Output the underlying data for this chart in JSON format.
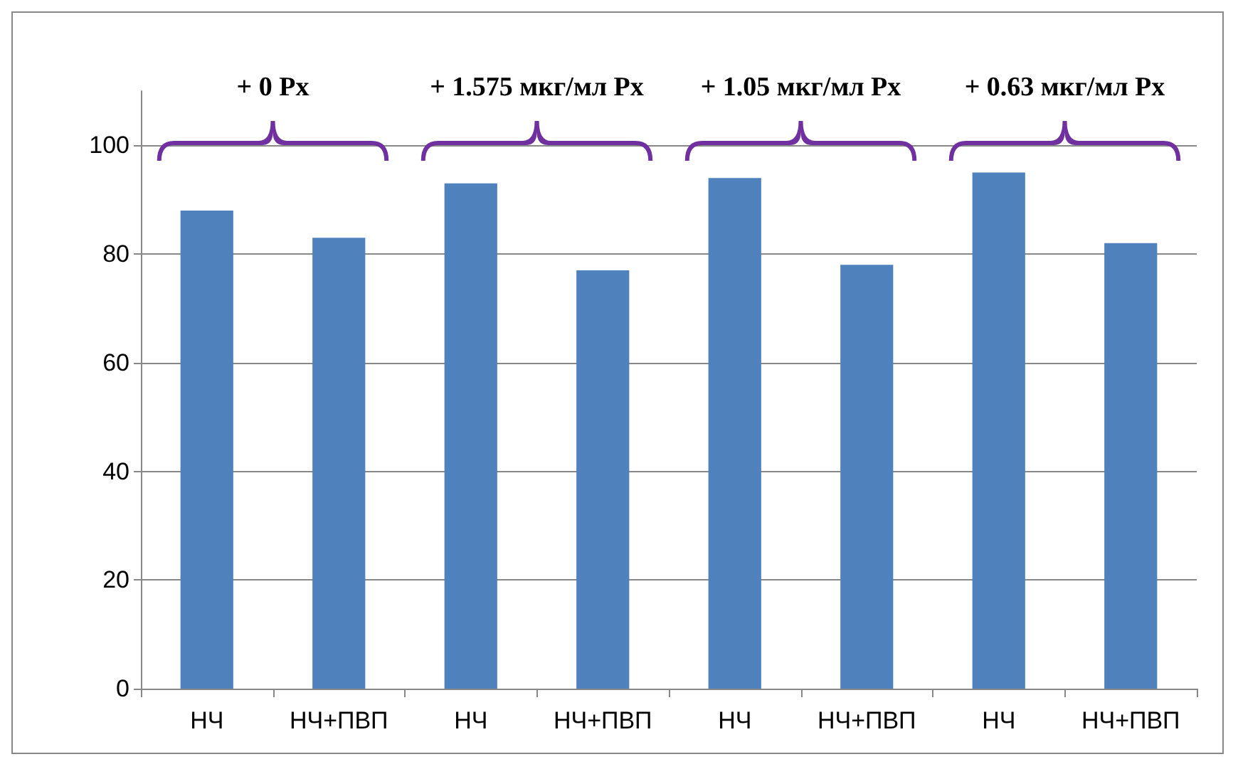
{
  "chart_data": {
    "type": "bar",
    "categories": [
      "НЧ",
      "НЧ+ПВП",
      "НЧ",
      "НЧ+ПВП",
      "НЧ",
      "НЧ+ПВП",
      "НЧ",
      "НЧ+ПВП"
    ],
    "values": [
      88,
      83,
      93,
      77,
      94,
      78,
      95,
      82
    ],
    "color": "#4f81bd",
    "ylim": [
      0,
      110
    ],
    "yticks": [
      0,
      20,
      40,
      60,
      80,
      100
    ],
    "grid": "y",
    "annotations": [
      "+ 0 Рх",
      "+ 1.575 мкг/мл Рх",
      "+ 1.05 мкг/мл Рх",
      "+ 0.63 мкг/мл Рх"
    ]
  }
}
